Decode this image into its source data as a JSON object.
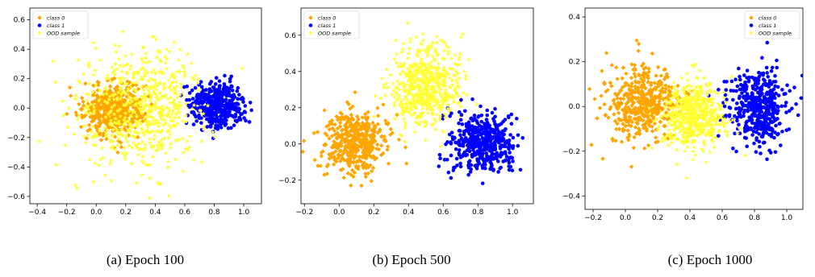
{
  "colors": {
    "class0": "#FFA500",
    "class1": "#0000FF",
    "ood": "#FFFF33"
  },
  "captions": [
    "(a) Epoch 100",
    "(b) Epoch 500",
    "(c) Epoch 1000"
  ],
  "chart_data": [
    {
      "type": "scatter",
      "title": "",
      "xlabel": "",
      "ylabel": "",
      "xlim": [
        -0.45,
        1.12
      ],
      "ylim": [
        -0.65,
        0.68
      ],
      "xticks": [
        -0.4,
        -0.2,
        0.0,
        0.2,
        0.4,
        0.6,
        0.8,
        1.0
      ],
      "xtick_labels": [
        "−0.4",
        "−0.2",
        "0.0",
        "0.2",
        "0.4",
        "0.6",
        "0.8",
        "1.0"
      ],
      "yticks": [
        -0.6,
        -0.4,
        -0.2,
        0.0,
        0.2,
        0.4,
        0.6
      ],
      "ytick_labels": [
        "−0.6",
        "−0.4",
        "−0.2",
        "0.0",
        "0.2",
        "0.4",
        "0.6"
      ],
      "legend_position": "top-left",
      "series": [
        {
          "name": "class 0",
          "marker": "diamond",
          "color": "#FFA500",
          "cluster": {
            "center": [
              0.12,
              0.0
            ],
            "spread": [
              0.1,
              0.09
            ],
            "count": 420
          }
        },
        {
          "name": "class 1",
          "marker": "circle",
          "color": "#0000FF",
          "cluster": {
            "center": [
              0.82,
              0.02
            ],
            "spread": [
              0.09,
              0.075
            ],
            "count": 420
          }
        },
        {
          "name": "OOD sample",
          "marker": "star",
          "color": "#FFFF33",
          "cluster": {
            "center": [
              0.3,
              0.0
            ],
            "spread": [
              0.22,
              0.19
            ],
            "count": 700
          }
        }
      ]
    },
    {
      "type": "scatter",
      "title": "",
      "xlabel": "",
      "ylabel": "",
      "xlim": [
        -0.22,
        1.12
      ],
      "ylim": [
        -0.33,
        0.75
      ],
      "xticks": [
        -0.2,
        0.0,
        0.2,
        0.4,
        0.6,
        0.8,
        1.0
      ],
      "xtick_labels": [
        "−0.2",
        "0.0",
        "0.2",
        "0.4",
        "0.6",
        "0.8",
        "1.0"
      ],
      "yticks": [
        -0.2,
        0.0,
        0.2,
        0.4,
        0.6
      ],
      "ytick_labels": [
        "−0.2",
        "0.0",
        "0.2",
        "0.4",
        "0.6"
      ],
      "legend_position": "top-left",
      "series": [
        {
          "name": "class 0",
          "marker": "diamond",
          "color": "#FFA500",
          "cluster": {
            "center": [
              0.1,
              0.01
            ],
            "spread": [
              0.09,
              0.085
            ],
            "count": 450
          }
        },
        {
          "name": "class 1",
          "marker": "circle",
          "color": "#0000FF",
          "cluster": {
            "center": [
              0.82,
              0.0
            ],
            "spread": [
              0.09,
              0.085
            ],
            "count": 450
          }
        },
        {
          "name": "OOD sample",
          "marker": "star",
          "color": "#FFFF33",
          "cluster": {
            "center": [
              0.5,
              0.32
            ],
            "spread": [
              0.1,
              0.11
            ],
            "count": 600
          }
        }
      ]
    },
    {
      "type": "scatter",
      "title": "",
      "xlabel": "",
      "ylabel": "",
      "xlim": [
        -0.25,
        1.1
      ],
      "ylim": [
        -0.46,
        0.44
      ],
      "xticks": [
        -0.2,
        0.0,
        0.2,
        0.4,
        0.6,
        0.8,
        1.0
      ],
      "xtick_labels": [
        "−0.2",
        "0.0",
        "0.2",
        "0.4",
        "0.6",
        "0.8",
        "1.0"
      ],
      "yticks": [
        -0.4,
        -0.2,
        0.0,
        0.2,
        0.4
      ],
      "ytick_labels": [
        "−0.4",
        "−0.2",
        "0.0",
        "0.2",
        "0.4"
      ],
      "legend_position": "top-right",
      "series": [
        {
          "name": "class 0",
          "marker": "diamond",
          "color": "#FFA500",
          "cluster": {
            "center": [
              0.1,
              0.01
            ],
            "spread": [
              0.11,
              0.085
            ],
            "count": 450
          }
        },
        {
          "name": "class 1",
          "marker": "circle",
          "color": "#0000FF",
          "cluster": {
            "center": [
              0.82,
              0.0
            ],
            "spread": [
              0.09,
              0.085
            ],
            "count": 450
          }
        },
        {
          "name": "OOD sample",
          "marker": "star",
          "color": "#FFFF33",
          "cluster": {
            "center": [
              0.42,
              -0.04
            ],
            "spread": [
              0.1,
              0.075
            ],
            "count": 600
          }
        }
      ]
    }
  ]
}
